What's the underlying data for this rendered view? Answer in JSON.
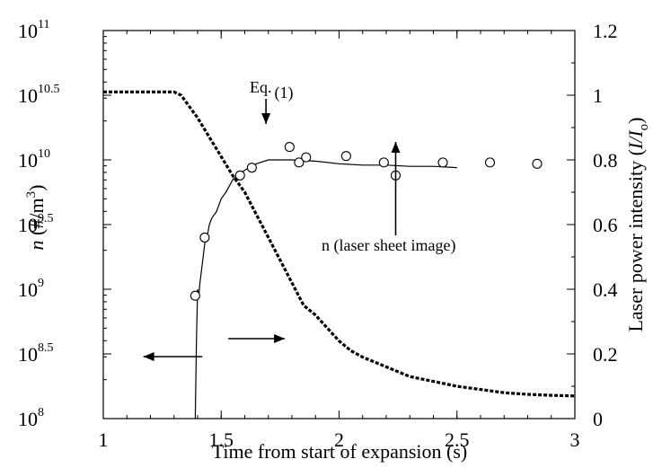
{
  "chart_data": {
    "type": "line",
    "xlabel": "Time from start of expansion (s)",
    "ylabel_left": {
      "italic": "n",
      "rest": " (#/m",
      "sup": "3",
      "end": ")"
    },
    "ylabel_right": {
      "prefix": "Laser power intensity (",
      "italic": "I/I",
      "sub": "o",
      "end": ")"
    },
    "xlim": [
      1,
      3
    ],
    "x_ticks": [
      "1",
      "1.5",
      "2",
      "2.5",
      "3"
    ],
    "ylim_left_log10": [
      8,
      11
    ],
    "y_ticks_left": [
      {
        "base": "10",
        "exp": "8"
      },
      {
        "base": "10",
        "exp": "8.5"
      },
      {
        "base": "10",
        "exp": "9"
      },
      {
        "base": "10",
        "exp": "9.5"
      },
      {
        "base": "10",
        "exp": "10"
      },
      {
        "base": "10",
        "exp": "10.5"
      },
      {
        "base": "10",
        "exp": "11"
      }
    ],
    "ylim_right": [
      0,
      1.2
    ],
    "y_ticks_right": [
      "0",
      "0.2",
      "0.4",
      "0.6",
      "0.8",
      "1",
      "1.2"
    ],
    "grid": false,
    "series": [
      {
        "axis": "right",
        "style": "dashed-thick",
        "x": [
          1.0,
          1.1,
          1.2,
          1.3,
          1.33,
          1.36,
          1.4,
          1.45,
          1.5,
          1.55,
          1.6,
          1.65,
          1.7,
          1.75,
          1.8,
          1.85,
          1.9,
          1.95,
          2.0,
          2.05,
          2.1,
          2.2,
          2.3,
          2.4,
          2.5,
          2.6,
          2.7,
          2.8,
          2.9,
          3.0
        ],
        "y": [
          1.01,
          1.01,
          1.01,
          1.01,
          1.0,
          0.97,
          0.93,
          0.87,
          0.81,
          0.75,
          0.7,
          0.63,
          0.56,
          0.49,
          0.42,
          0.35,
          0.32,
          0.28,
          0.24,
          0.21,
          0.19,
          0.16,
          0.13,
          0.115,
          0.1,
          0.09,
          0.08,
          0.075,
          0.072,
          0.07
        ]
      },
      {
        "axis": "left",
        "style": "solid-thin",
        "x": [
          1.39,
          1.395,
          1.4,
          1.405,
          1.41,
          1.42,
          1.43,
          1.44,
          1.45,
          1.46,
          1.48,
          1.5,
          1.52,
          1.55,
          1.6,
          1.65,
          1.7,
          1.75,
          1.8,
          1.9,
          2.0,
          2.1,
          2.2,
          2.3,
          2.4,
          2.5
        ],
        "y_log10": [
          8.0,
          8.6,
          9.0,
          8.95,
          9.05,
          9.2,
          9.35,
          9.4,
          9.5,
          9.55,
          9.6,
          9.7,
          9.75,
          9.85,
          9.92,
          9.97,
          10.0,
          10.0,
          10.0,
          9.99,
          9.97,
          9.96,
          9.96,
          9.95,
          9.95,
          9.94
        ]
      },
      {
        "axis": "left",
        "style": "open-circle",
        "x": [
          1.39,
          1.43,
          1.58,
          1.63,
          1.79,
          1.83,
          1.86,
          2.03,
          2.19,
          2.24,
          2.44,
          2.64,
          2.84
        ],
        "y_log10": [
          8.95,
          9.4,
          9.88,
          9.94,
          10.1,
          9.98,
          10.02,
          10.03,
          9.98,
          9.88,
          9.98,
          9.98,
          9.97
        ]
      }
    ],
    "annotations": [
      {
        "name": "eq-label",
        "text_main": "Eq.",
        "text_paren": "(1)"
      },
      {
        "name": "laser-sheet-label",
        "text": "n (laser sheet image)"
      }
    ]
  }
}
